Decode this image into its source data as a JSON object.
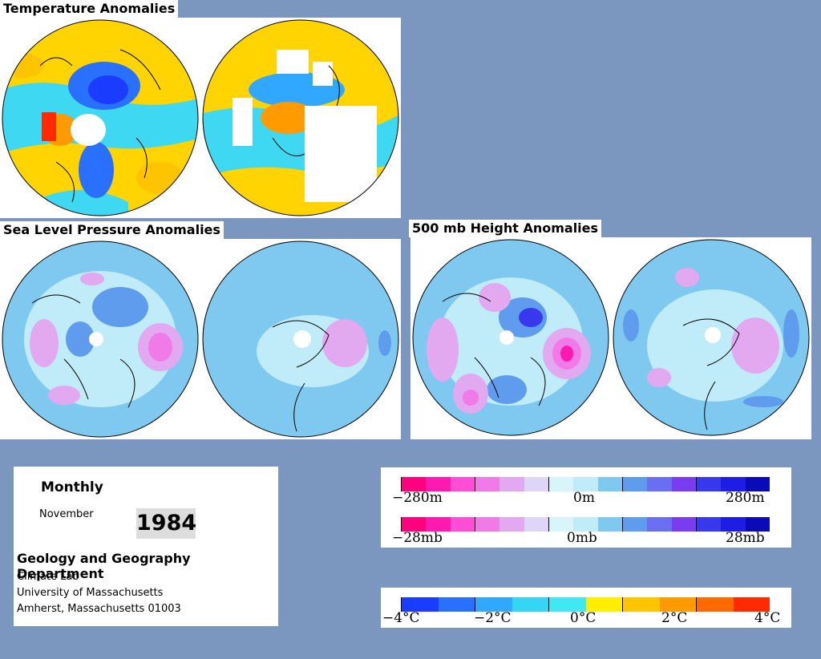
{
  "titles": {
    "temperature": "Temperature Anomalies",
    "slp": "Sea Level Pressure Anomalies",
    "h500": "500 mb Height Anomalies"
  },
  "info": {
    "period": "Monthly",
    "month": "November",
    "year": "1984",
    "department": "Geology and Geography Department",
    "lines": [
      "Climate Lab",
      "University of Massachusetts",
      "Amherst, Massachusetts 01003"
    ]
  },
  "legend_height": {
    "labels": [
      "−280m",
      "0m",
      "280m"
    ],
    "colors": [
      "#ff007f",
      "#ff19b0",
      "#ff4dd8",
      "#f07ae8",
      "#e2a8f0",
      "#ded6f7",
      "#d8f5fc",
      "#c0ecfa",
      "#7fc9f0",
      "#5f9cee",
      "#6a6ef0",
      "#7a3cf0",
      "#3838ee",
      "#1d1de6",
      "#0a0ab8"
    ]
  },
  "legend_pressure": {
    "labels": [
      "−28mb",
      "0mb",
      "28mb"
    ],
    "colors": [
      "#ff007f",
      "#ff19b0",
      "#ff4dd8",
      "#f07ae8",
      "#e2a8f0",
      "#ded6f7",
      "#d8f5fc",
      "#c0ecfa",
      "#7fc9f0",
      "#5f9cee",
      "#6a6ef0",
      "#7a3cf0",
      "#3838ee",
      "#1d1de6",
      "#0a0ab8"
    ]
  },
  "legend_temperature": {
    "labels": [
      "−4°C",
      "−2°C",
      "0°C",
      "2°C",
      "4°C"
    ],
    "colors": [
      "#1a3cff",
      "#2a70ff",
      "#30a8ff",
      "#35d6f5",
      "#3fe8f2",
      "#ffee00",
      "#ffc400",
      "#ff9a00",
      "#ff6a00",
      "#ff2a00"
    ]
  }
}
